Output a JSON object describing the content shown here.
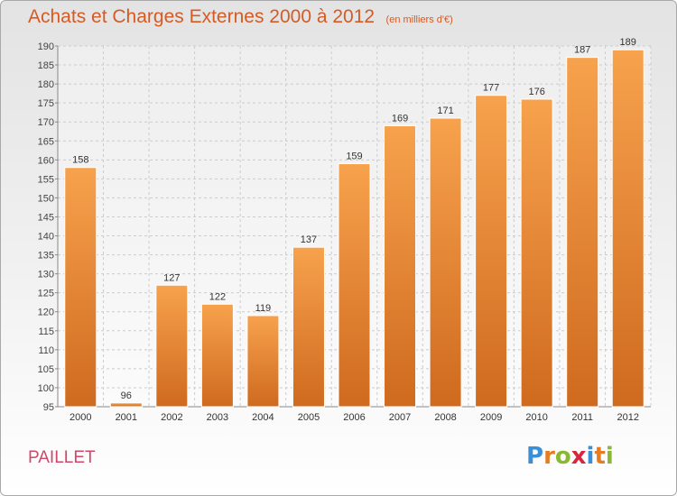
{
  "header": {
    "title": "Achats et Charges Externes 2000 à 2012",
    "subtitle": "(en milliers d'€)"
  },
  "commune": "PAILLET",
  "logo": {
    "text": "Proxiti"
  },
  "colors": {
    "bar_light": "#f7a24d",
    "bar_dark": "#cf6a1e",
    "accent": "#d75a23"
  },
  "chart_data": {
    "type": "bar",
    "title": "Achats et Charges Externes 2000 à 2012",
    "subtitle": "(en milliers d'€)",
    "categories": [
      "2000",
      "2001",
      "2002",
      "2003",
      "2004",
      "2005",
      "2006",
      "2007",
      "2008",
      "2009",
      "2010",
      "2011",
      "2012"
    ],
    "values": [
      158,
      96,
      127,
      122,
      119,
      137,
      159,
      169,
      171,
      177,
      176,
      187,
      189
    ],
    "ylim": [
      95,
      190
    ],
    "yticks": [
      95,
      100,
      105,
      110,
      115,
      120,
      125,
      130,
      135,
      140,
      145,
      150,
      155,
      160,
      165,
      170,
      175,
      180,
      185,
      190
    ],
    "grid": true,
    "xlabel": "",
    "ylabel": ""
  }
}
